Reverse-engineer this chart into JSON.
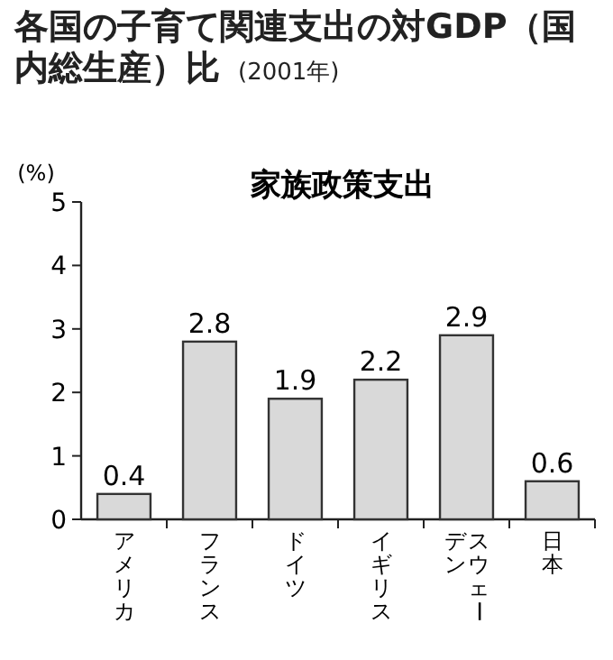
{
  "chart_data": {
    "type": "bar",
    "title": "各国の子育て関連支出の対GDP（国内総生産）比",
    "subtitle": "家族政策支出",
    "annotations": [
      "(2001年)"
    ],
    "ylabel": "(%)",
    "categories": [
      "アメリカ",
      "フランス",
      "ドイツ",
      "イギリス",
      "スウェーデン",
      "日本"
    ],
    "values": [
      0.4,
      2.8,
      1.9,
      2.2,
      2.9,
      0.6
    ],
    "color": "#d9d9d9",
    "ylim": [
      0,
      5
    ],
    "yticks": [
      0,
      1,
      2,
      3,
      4,
      5
    ],
    "data_labels": true,
    "grid": false
  }
}
